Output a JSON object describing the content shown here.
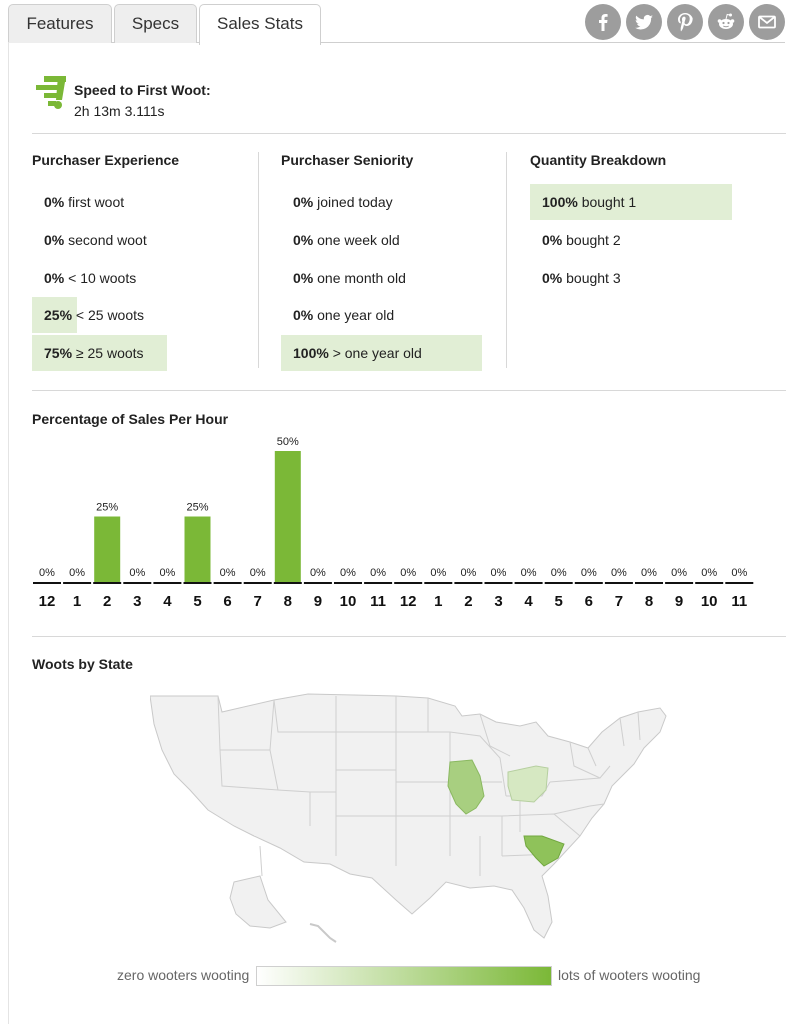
{
  "tabs": [
    {
      "label": "Features",
      "active": false
    },
    {
      "label": "Specs",
      "active": false
    },
    {
      "label": "Sales Stats",
      "active": true
    }
  ],
  "social": [
    {
      "name": "facebook-icon"
    },
    {
      "name": "twitter-icon"
    },
    {
      "name": "pinterest-icon"
    },
    {
      "name": "reddit-icon"
    },
    {
      "name": "email-icon"
    }
  ],
  "speed": {
    "title": "Speed to First Woot:",
    "value": "2h 13m 3.111s"
  },
  "experience": {
    "title": "Purchaser Experience",
    "rows": [
      {
        "pct": "0%",
        "label": "first woot",
        "fill": 0
      },
      {
        "pct": "0%",
        "label": "second woot",
        "fill": 0
      },
      {
        "pct": "0%",
        "label": "< 10 woots",
        "fill": 0
      },
      {
        "pct": "25%",
        "label": "< 25 woots",
        "fill": 0.25
      },
      {
        "pct": "75%",
        "label": "≥ 25 woots",
        "fill": 0.75
      }
    ]
  },
  "seniority": {
    "title": "Purchaser Seniority",
    "rows": [
      {
        "pct": "0%",
        "label": "joined today",
        "fill": 0
      },
      {
        "pct": "0%",
        "label": "one week old",
        "fill": 0
      },
      {
        "pct": "0%",
        "label": "one month old",
        "fill": 0
      },
      {
        "pct": "0%",
        "label": "one year old",
        "fill": 0
      },
      {
        "pct": "100%",
        "label": "> one year old",
        "fill": 1
      }
    ]
  },
  "quantity": {
    "title": "Quantity Breakdown",
    "rows": [
      {
        "pct": "100%",
        "label": "bought 1",
        "fill": 1
      },
      {
        "pct": "0%",
        "label": "bought 2",
        "fill": 0
      },
      {
        "pct": "0%",
        "label": "bought 3",
        "fill": 0
      }
    ]
  },
  "hourly": {
    "title": "Percentage of Sales Per Hour"
  },
  "chart_data": {
    "type": "bar",
    "categories": [
      "12",
      "1",
      "2",
      "3",
      "4",
      "5",
      "6",
      "7",
      "8",
      "9",
      "10",
      "11",
      "12",
      "1",
      "2",
      "3",
      "4",
      "5",
      "6",
      "7",
      "8",
      "9",
      "10",
      "11"
    ],
    "values": [
      0,
      0,
      25,
      0,
      0,
      25,
      0,
      0,
      50,
      0,
      0,
      0,
      0,
      0,
      0,
      0,
      0,
      0,
      0,
      0,
      0,
      0,
      0,
      0
    ],
    "labels": [
      "0%",
      "0%",
      "25%",
      "0%",
      "0%",
      "25%",
      "0%",
      "0%",
      "50%",
      "0%",
      "0%",
      "0%",
      "0%",
      "0%",
      "0%",
      "0%",
      "0%",
      "0%",
      "0%",
      "0%",
      "0%",
      "0%",
      "0%",
      "0%"
    ],
    "ylim": [
      0,
      50
    ],
    "color": "#7bb837"
  },
  "states": {
    "title": "Woots by State",
    "highlighted": [
      {
        "state": "Illinois",
        "color": "#a8cf80"
      },
      {
        "state": "Ohio",
        "color": "#d6e8c2"
      },
      {
        "state": "South Carolina",
        "color": "#8fc25a"
      }
    ],
    "legend_low": "zero wooters wooting",
    "legend_high": "lots of wooters wooting",
    "legend_colors": [
      "#ffffff",
      "#7bb837"
    ]
  }
}
